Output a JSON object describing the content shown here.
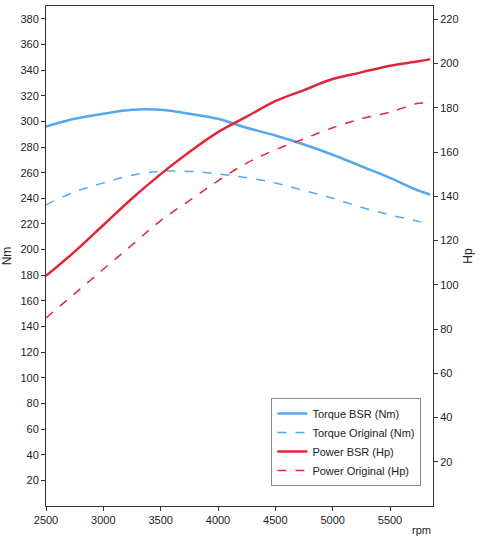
{
  "chart_data": {
    "type": "line",
    "x_label": "rpm",
    "y_label": "Nm",
    "y2_label": "Hp",
    "x": [
      2500,
      2750,
      3000,
      3250,
      3500,
      3750,
      4000,
      4250,
      4500,
      4750,
      5000,
      5250,
      5500,
      5750,
      5850
    ],
    "xlim": [
      2500,
      5875
    ],
    "xticks": [
      2500,
      3000,
      3500,
      4000,
      4500,
      5000,
      5500
    ],
    "ylim": [
      0,
      390
    ],
    "yticks": [
      20,
      40,
      60,
      80,
      100,
      120,
      140,
      160,
      180,
      200,
      220,
      240,
      260,
      280,
      300,
      320,
      340,
      360,
      380
    ],
    "y2lim": [
      0,
      226
    ],
    "y2ticks": [
      20,
      40,
      60,
      80,
      100,
      120,
      140,
      160,
      180,
      200,
      220
    ],
    "grid": false,
    "legend": "bottom right",
    "series": [
      {
        "name": "Torque BSR (Nm)",
        "color": "#55a8ee",
        "line_style": "solid",
        "values": [
          296,
          302,
          306,
          309,
          309,
          306,
          302,
          295,
          289,
          282,
          274,
          265,
          256,
          246,
          243
        ]
      },
      {
        "name": "Torque Original (Nm)",
        "color": "#55a8ee",
        "line_style": "dash",
        "values": [
          235,
          245,
          252,
          258,
          261,
          261,
          259,
          256,
          252,
          246,
          240,
          233,
          227,
          222,
          219
        ]
      },
      {
        "name": "Power BSR (Hp)",
        "color": "#e3263a",
        "line_style": "solid",
        "axis": "y2",
        "values": [
          104,
          115,
          127,
          139,
          150,
          160,
          169,
          176,
          183,
          188,
          193,
          196,
          199,
          201,
          202
        ]
      },
      {
        "name": "Power Original (Hp)",
        "color": "#e3263a",
        "line_style": "dash",
        "axis": "y2",
        "values": [
          85,
          96,
          107,
          118,
          129,
          138,
          147,
          155,
          161,
          166,
          171,
          175,
          178,
          182,
          182
        ]
      }
    ]
  }
}
